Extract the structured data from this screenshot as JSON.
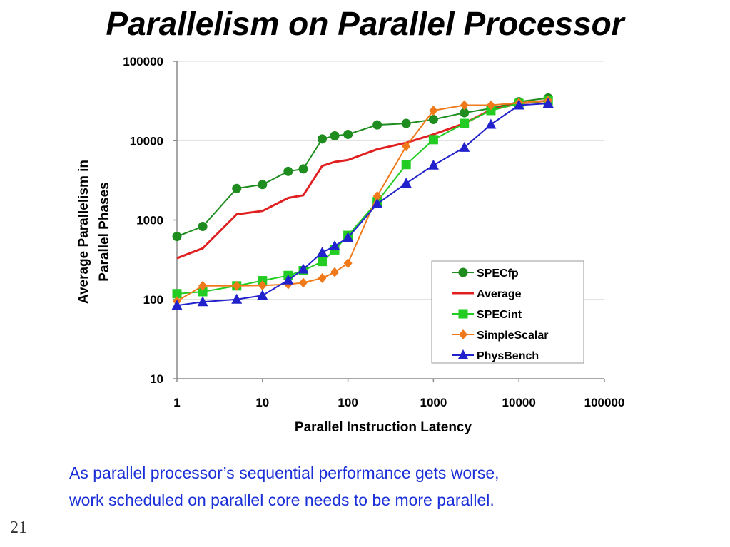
{
  "slide": {
    "title": "Parallelism on Parallel Processor",
    "caption_line1": "As parallel processor’s sequential performance gets worse,",
    "caption_line2": "work scheduled on parallel core needs to be more parallel.",
    "page_number": "21",
    "caption_color": "#1a2fd8"
  },
  "chart_data": {
    "type": "line",
    "title": "",
    "xlabel": "Parallel Instruction Latency",
    "ylabel_line1": "Average Parallelism in",
    "ylabel_line2": "Parallel Phases",
    "xscale": "log",
    "yscale": "log",
    "xlim": [
      1,
      100000
    ],
    "ylim": [
      10,
      100000
    ],
    "x_ticks": [
      "1",
      "10",
      "100",
      "1000",
      "10000",
      "100000"
    ],
    "y_ticks": [
      "10",
      "100",
      "1000",
      "10000",
      "100000"
    ],
    "grid": "horizontal",
    "legend_position": "bottom-right",
    "series": [
      {
        "name": "SPECfp",
        "color": "#1e8c1e",
        "marker": "circle",
        "points": [
          [
            1,
            620
          ],
          [
            2,
            830
          ],
          [
            5,
            2500
          ],
          [
            10,
            2800
          ],
          [
            20,
            4100
          ],
          [
            30,
            4400
          ],
          [
            50,
            10500
          ],
          [
            70,
            11500
          ],
          [
            100,
            12000
          ],
          [
            220,
            15800
          ],
          [
            480,
            16500
          ],
          [
            1000,
            18500
          ],
          [
            2300,
            22500
          ],
          [
            4700,
            25500
          ],
          [
            10000,
            31000
          ],
          [
            22000,
            34500
          ]
        ]
      },
      {
        "name": "Average",
        "color": "#e02020",
        "marker": "none",
        "points": [
          [
            1,
            330
          ],
          [
            2,
            440
          ],
          [
            5,
            1180
          ],
          [
            10,
            1300
          ],
          [
            20,
            1900
          ],
          [
            30,
            2050
          ],
          [
            50,
            4800
          ],
          [
            70,
            5400
          ],
          [
            100,
            5700
          ],
          [
            220,
            7800
          ],
          [
            480,
            9400
          ],
          [
            1000,
            12000
          ],
          [
            2300,
            16500
          ],
          [
            4700,
            24500
          ],
          [
            10000,
            29500
          ],
          [
            22000,
            32000
          ]
        ]
      },
      {
        "name": "SPECint",
        "color": "#22cc22",
        "marker": "square",
        "points": [
          [
            1,
            118
          ],
          [
            2,
            125
          ],
          [
            5,
            148
          ],
          [
            10,
            172
          ],
          [
            20,
            200
          ],
          [
            30,
            230
          ],
          [
            50,
            300
          ],
          [
            70,
            420
          ],
          [
            100,
            640
          ],
          [
            220,
            1700
          ],
          [
            480,
            5000
          ],
          [
            1000,
            10300
          ],
          [
            2300,
            16500
          ],
          [
            4700,
            24000
          ],
          [
            10000,
            29500
          ],
          [
            22000,
            32000
          ]
        ]
      },
      {
        "name": "SimpleScalar",
        "color": "#f07a1a",
        "marker": "diamond",
        "points": [
          [
            1,
            95
          ],
          [
            2,
            148
          ],
          [
            5,
            148
          ],
          [
            10,
            150
          ],
          [
            20,
            155
          ],
          [
            30,
            162
          ],
          [
            50,
            185
          ],
          [
            70,
            220
          ],
          [
            100,
            285
          ],
          [
            220,
            2000
          ],
          [
            480,
            8500
          ],
          [
            1000,
            24000
          ],
          [
            2300,
            28000
          ],
          [
            4700,
            28000
          ],
          [
            10000,
            30000
          ],
          [
            22000,
            32000
          ]
        ]
      },
      {
        "name": "PhysBench",
        "color": "#2222cc",
        "marker": "triangle",
        "points": [
          [
            1,
            84
          ],
          [
            2,
            93
          ],
          [
            5,
            100
          ],
          [
            10,
            112
          ],
          [
            20,
            175
          ],
          [
            30,
            240
          ],
          [
            50,
            390
          ],
          [
            70,
            470
          ],
          [
            100,
            600
          ],
          [
            220,
            1600
          ],
          [
            480,
            2900
          ],
          [
            1000,
            4900
          ],
          [
            2300,
            8200
          ],
          [
            4700,
            16000
          ],
          [
            10000,
            28000
          ],
          [
            22000,
            29500
          ]
        ]
      }
    ]
  }
}
